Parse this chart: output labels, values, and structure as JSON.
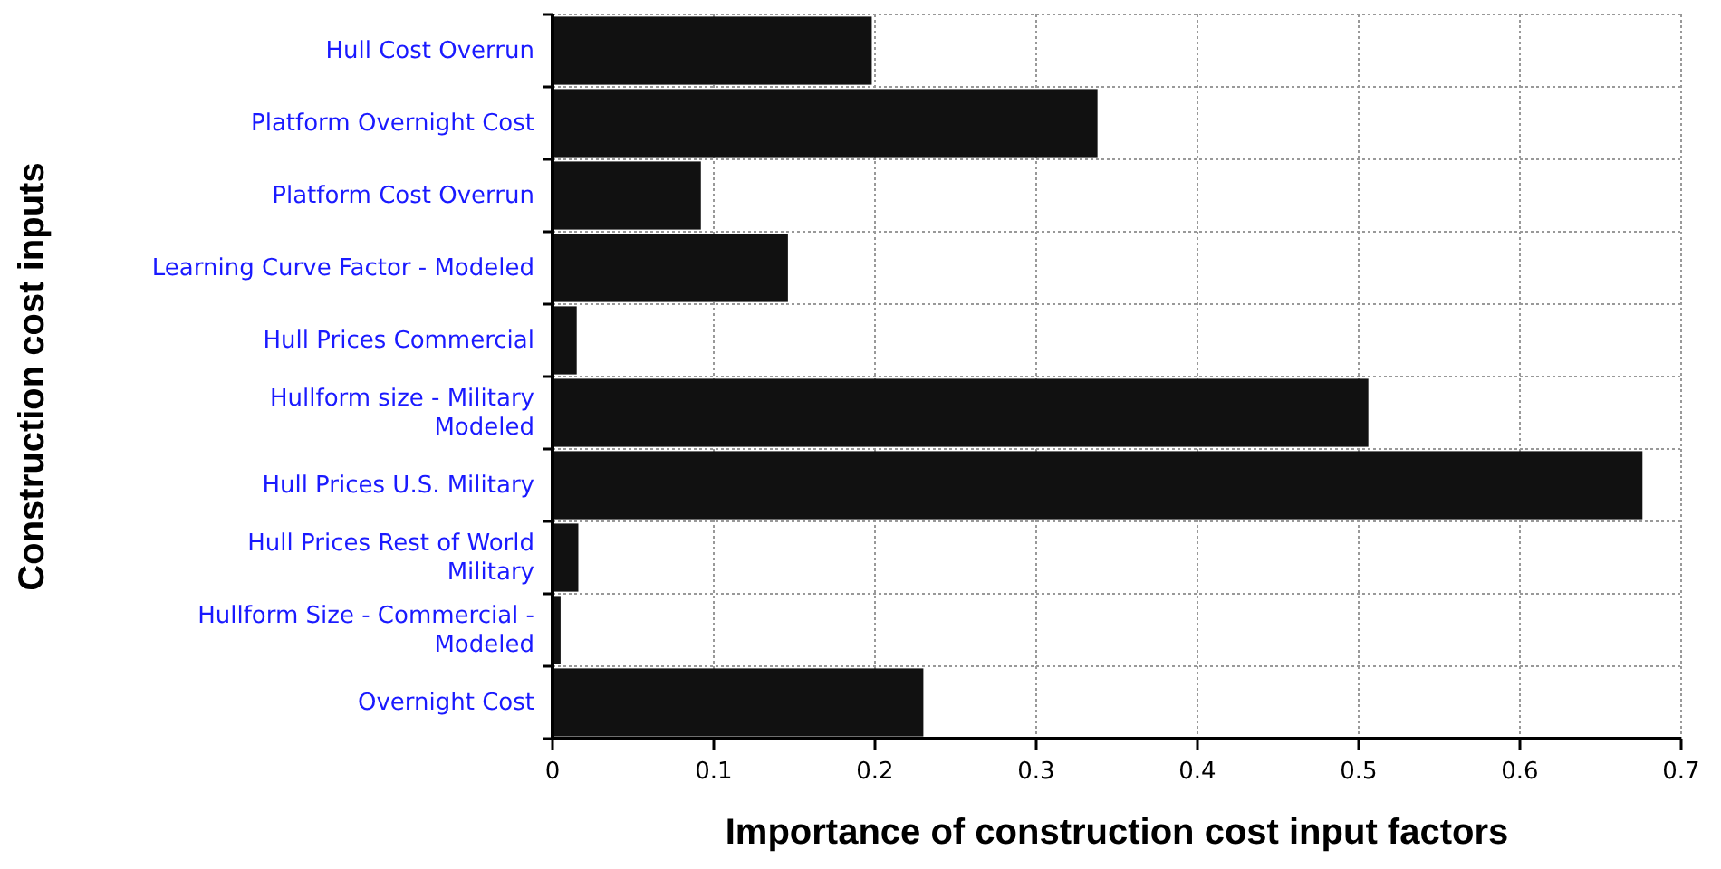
{
  "chart_data": {
    "type": "bar",
    "orientation": "horizontal",
    "xlabel": "Importance of construction cost input factors",
    "ylabel": "Construction cost inputs",
    "categories": [
      "Hull Cost Overrun",
      "Platform Overnight Cost",
      "Platform Cost Overrun",
      "Learning Curve Factor - Modeled",
      "Hull Prices Commercial",
      "Hullform size - Military Modeled",
      "Hull Prices U.S. Military",
      "Hull Prices Rest of World Military",
      "Hullform Size - Commercial - Modeled",
      "Overnight Cost"
    ],
    "values": [
      0.198,
      0.338,
      0.092,
      0.146,
      0.015,
      0.506,
      0.676,
      0.016,
      0.005,
      0.23
    ],
    "color": "#111111",
    "xlim": [
      0,
      0.7
    ],
    "xticks": [
      0,
      0.1,
      0.2,
      0.3,
      0.4,
      0.5,
      0.6,
      0.7
    ],
    "grid": true
  }
}
